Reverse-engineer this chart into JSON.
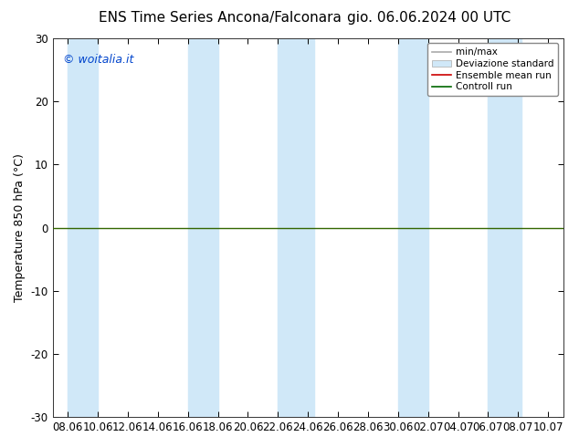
{
  "title_left": "ENS Time Series Ancona/Falconara",
  "title_right": "gio. 06.06.2024 00 UTC",
  "ylabel": "Temperature 850 hPa (°C)",
  "ylim": [
    -30,
    30
  ],
  "yticks": [
    -30,
    -20,
    -10,
    0,
    10,
    20,
    30
  ],
  "x_labels": [
    "08.06",
    "10.06",
    "12.06",
    "14.06",
    "16.06",
    "18.06",
    "20.06",
    "22.06",
    "24.06",
    "26.06",
    "28.06",
    "30.06",
    "02.07",
    "04.07",
    "06.07",
    "08.07",
    "10.07"
  ],
  "watermark": "© woitalia.it",
  "legend_entries": [
    "min/max",
    "Deviazione standard",
    "Ensemble mean run",
    "Controll run"
  ],
  "legend_line_colors": [
    "#aaaaaa",
    "#cccccc",
    "#cc0000",
    "#006600"
  ],
  "background_color": "#ffffff",
  "plot_background": "#ffffff",
  "band_color": "#d0e8f8",
  "band_positions_x": [
    0.0,
    0.9,
    4.0,
    5.0,
    7.0,
    8.2,
    11.0,
    12.0,
    14.0,
    15.1
  ],
  "grid_color": "#999999",
  "zero_line_color": "#336600",
  "title_fontsize": 11,
  "axis_fontsize": 9,
  "tick_fontsize": 8.5
}
